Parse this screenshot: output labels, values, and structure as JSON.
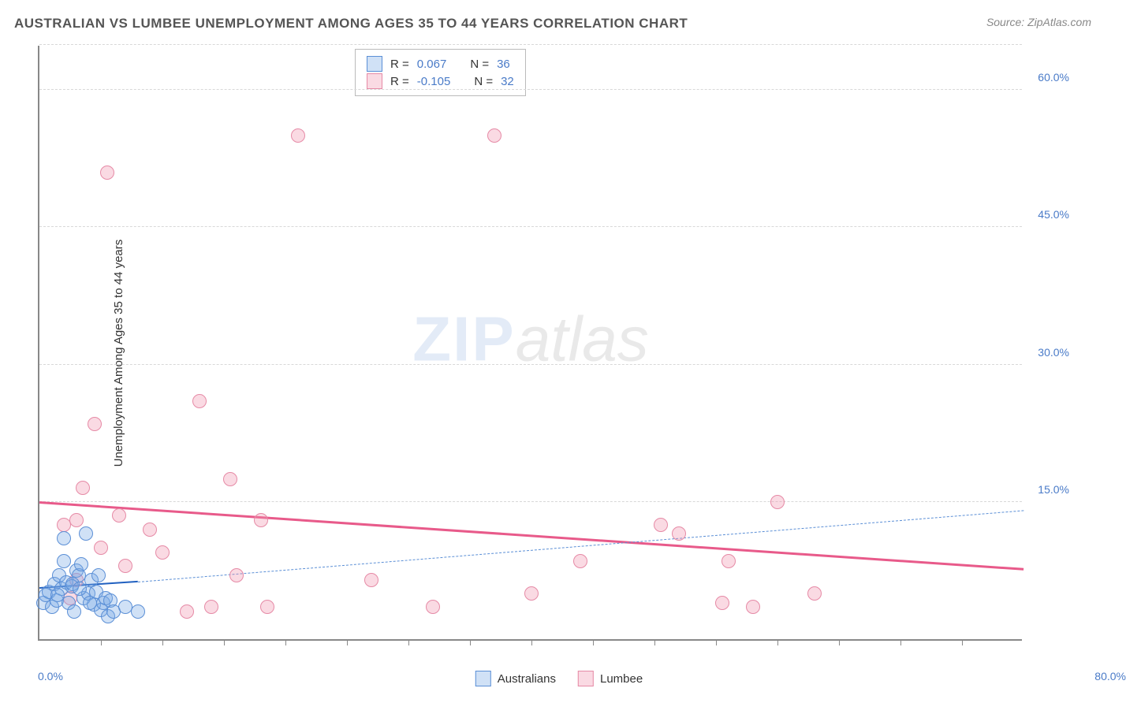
{
  "title": "AUSTRALIAN VS LUMBEE UNEMPLOYMENT AMONG AGES 35 TO 44 YEARS CORRELATION CHART",
  "source": "Source: ZipAtlas.com",
  "watermark": {
    "zip": "ZIP",
    "atlas": "atlas"
  },
  "chart": {
    "type": "scatter",
    "ylabel": "Unemployment Among Ages 35 to 44 years",
    "xlim": [
      0,
      80
    ],
    "ylim": [
      0,
      65
    ],
    "xaxis_label_left": "0.0%",
    "xaxis_label_right": "80.0%",
    "yticks": [
      {
        "v": 15,
        "label": "15.0%"
      },
      {
        "v": 30,
        "label": "30.0%"
      },
      {
        "v": 45,
        "label": "45.0%"
      },
      {
        "v": 60,
        "label": "60.0%"
      }
    ],
    "xticks_minor": [
      5,
      10,
      15,
      20,
      25,
      30,
      35,
      40,
      45,
      50,
      55,
      60,
      65,
      70,
      75
    ],
    "grid_color": "#d8d8d8",
    "background_color": "#ffffff",
    "axis_color": "#888888",
    "tick_label_color": "#4a7bc8",
    "label_fontsize": 15,
    "title_fontsize": 17,
    "point_radius": 9,
    "series": {
      "australians": {
        "label": "Australians",
        "fill": "rgba(120,170,230,0.35)",
        "stroke": "#5b8fd6",
        "points": [
          [
            0.3,
            4.0
          ],
          [
            0.5,
            4.8
          ],
          [
            0.8,
            5.2
          ],
          [
            1.0,
            3.5
          ],
          [
            1.2,
            6.0
          ],
          [
            1.4,
            4.2
          ],
          [
            1.6,
            7.0
          ],
          [
            1.8,
            5.5
          ],
          [
            2.0,
            8.5
          ],
          [
            2.0,
            11.0
          ],
          [
            2.2,
            6.2
          ],
          [
            2.4,
            4.0
          ],
          [
            2.6,
            5.8
          ],
          [
            2.8,
            3.0
          ],
          [
            3.0,
            7.5
          ],
          [
            3.2,
            7.0
          ],
          [
            3.4,
            8.2
          ],
          [
            3.6,
            4.5
          ],
          [
            3.8,
            11.5
          ],
          [
            4.0,
            5.0
          ],
          [
            4.2,
            6.5
          ],
          [
            4.4,
            3.8
          ],
          [
            4.6,
            5.2
          ],
          [
            4.8,
            7.0
          ],
          [
            5.0,
            3.2
          ],
          [
            5.2,
            4.0
          ],
          [
            5.4,
            4.5
          ],
          [
            5.6,
            2.5
          ],
          [
            5.8,
            4.2
          ],
          [
            6.0,
            3.0
          ],
          [
            1.5,
            4.8
          ],
          [
            2.7,
            6.0
          ],
          [
            3.3,
            5.5
          ],
          [
            4.1,
            4.0
          ],
          [
            7.0,
            3.5
          ],
          [
            8.0,
            3.0
          ]
        ],
        "trend": {
          "x1": 0,
          "y1": 5.5,
          "x2": 8,
          "y2": 6.2,
          "color": "#2060c0",
          "width": 2.5,
          "dash": false
        },
        "trend_ext": {
          "x1": 8,
          "y1": 6.2,
          "x2": 80,
          "y2": 14.0,
          "color": "#5b8fd6",
          "width": 1.5,
          "dash": true
        },
        "R": "0.067",
        "N": "36"
      },
      "lumbee": {
        "label": "Lumbee",
        "fill": "rgba(240,150,175,0.35)",
        "stroke": "#e68aa6",
        "points": [
          [
            2.0,
            12.5
          ],
          [
            3.0,
            6.5
          ],
          [
            3.5,
            16.5
          ],
          [
            4.5,
            23.5
          ],
          [
            5.0,
            10.0
          ],
          [
            5.5,
            51.0
          ],
          [
            6.5,
            13.5
          ],
          [
            7.0,
            8.0
          ],
          [
            9.0,
            12.0
          ],
          [
            10.0,
            9.5
          ],
          [
            12.0,
            3.0
          ],
          [
            13.0,
            26.0
          ],
          [
            14.0,
            3.5
          ],
          [
            15.5,
            17.5
          ],
          [
            16.0,
            7.0
          ],
          [
            18.0,
            13.0
          ],
          [
            18.5,
            3.5
          ],
          [
            21.0,
            55.0
          ],
          [
            27.0,
            6.5
          ],
          [
            32.0,
            3.5
          ],
          [
            37.0,
            55.0
          ],
          [
            40.0,
            5.0
          ],
          [
            44.0,
            8.5
          ],
          [
            50.5,
            12.5
          ],
          [
            52.0,
            11.5
          ],
          [
            55.5,
            4.0
          ],
          [
            56.0,
            8.5
          ],
          [
            58.0,
            3.5
          ],
          [
            60.0,
            15.0
          ],
          [
            63.0,
            5.0
          ],
          [
            3.0,
            13.0
          ],
          [
            2.5,
            4.5
          ]
        ],
        "trend": {
          "x1": 0,
          "y1": 14.8,
          "x2": 80,
          "y2": 7.5,
          "color": "#e85a8a",
          "width": 3,
          "dash": false
        },
        "R": "-0.105",
        "N": "32"
      }
    },
    "stats_labels": {
      "R": "R =",
      "N": "N ="
    }
  }
}
